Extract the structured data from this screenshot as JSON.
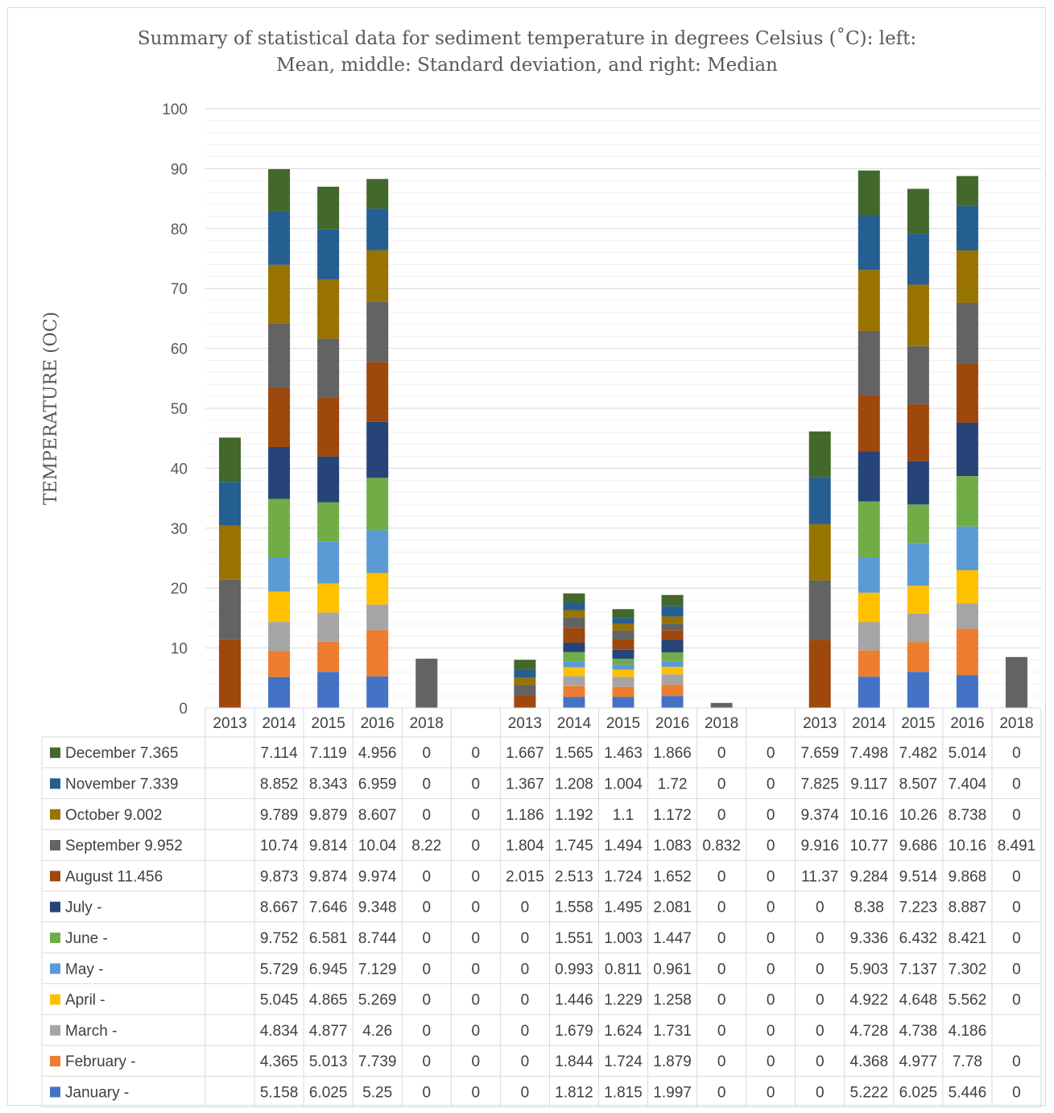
{
  "title": {
    "line1": "Summary of statistical data for sediment temperature in degrees Celsius (˚C): left:",
    "line2": "Mean, middle: Standard deviation, and right: Median"
  },
  "chart_data": {
    "type": "bar",
    "stacked": true,
    "title": "Summary of statistical data for sediment temperature in degrees Celsius (˚C): left: Mean, middle: Standard deviation, and right: Median",
    "ylabel": "TEMPERATURE  (OC)",
    "ylim": [
      0,
      100
    ],
    "yticks": [
      0,
      10,
      20,
      30,
      40,
      50,
      60,
      70,
      80,
      90,
      100
    ],
    "grid": true,
    "legend": "data-table-left",
    "categories": [
      "2013",
      "2014",
      "2015",
      "2016",
      "2018",
      "",
      "2013",
      "2014",
      "2015",
      "2016",
      "2018",
      "",
      "2013",
      "2014",
      "2015",
      "2016",
      "2018"
    ],
    "series": [
      {
        "name": "January",
        "legend_text": "January -",
        "color": "#4472c4",
        "values": [
          0,
          5.158,
          6.025,
          5.25,
          0,
          0,
          0,
          1.812,
          1.815,
          1.997,
          0,
          0,
          0,
          5.222,
          6.025,
          5.446,
          0
        ],
        "labels": [
          "-",
          "5.158",
          "6.025",
          "5.25",
          "0",
          "0",
          "0",
          "1.812",
          "1.815",
          "1.997",
          "0",
          "0",
          "0",
          "5.222",
          "6.025",
          "5.446",
          "0"
        ]
      },
      {
        "name": "February",
        "legend_text": "February -",
        "color": "#ed7d31",
        "values": [
          0,
          4.365,
          5.013,
          7.739,
          0,
          0,
          0,
          1.844,
          1.724,
          1.879,
          0,
          0,
          0,
          4.368,
          4.977,
          7.78,
          0
        ],
        "labels": [
          "-",
          "4.365",
          "5.013",
          "7.739",
          "0",
          "0",
          "0",
          "1.844",
          "1.724",
          "1.879",
          "0",
          "0",
          "0",
          "4.368",
          "4.977",
          "7.78",
          "0"
        ]
      },
      {
        "name": "March",
        "legend_text": "March -",
        "color": "#a5a5a5",
        "values": [
          0,
          4.834,
          4.877,
          4.26,
          0,
          0,
          0,
          1.679,
          1.624,
          1.731,
          0,
          0,
          0,
          4.728,
          4.738,
          4.186,
          0
        ],
        "labels": [
          "-",
          "4.834",
          "4.877",
          "4.26",
          "0",
          "0",
          "0",
          "1.679",
          "1.624",
          "1.731",
          "0",
          "0",
          "0",
          "4.728",
          "4.738",
          "4.186",
          ""
        ]
      },
      {
        "name": "April",
        "legend_text": "April -",
        "color": "#ffc000",
        "values": [
          0,
          5.045,
          4.865,
          5.269,
          0,
          0,
          0,
          1.446,
          1.229,
          1.258,
          0,
          0,
          0,
          4.922,
          4.648,
          5.562,
          0
        ],
        "labels": [
          "-",
          "5.045",
          "4.865",
          "5.269",
          "0",
          "0",
          "0",
          "1.446",
          "1.229",
          "1.258",
          "0",
          "0",
          "0",
          "4.922",
          "4.648",
          "5.562",
          "0"
        ]
      },
      {
        "name": "May",
        "legend_text": "May -",
        "color": "#5b9bd5",
        "values": [
          0,
          5.729,
          6.945,
          7.129,
          0,
          0,
          0,
          0.993,
          0.811,
          0.961,
          0,
          0,
          0,
          5.903,
          7.137,
          7.302,
          0
        ],
        "labels": [
          "-",
          "5.729",
          "6.945",
          "7.129",
          "0",
          "0",
          "0",
          "0.993",
          "0.811",
          "0.961",
          "0",
          "0",
          "0",
          "5.903",
          "7.137",
          "7.302",
          "0"
        ]
      },
      {
        "name": "June",
        "legend_text": "June -",
        "color": "#70ad47",
        "values": [
          0,
          9.752,
          6.581,
          8.744,
          0,
          0,
          0,
          1.551,
          1.003,
          1.447,
          0,
          0,
          0,
          9.336,
          6.432,
          8.421,
          0
        ],
        "labels": [
          "-",
          "9.752",
          "6.581",
          "8.744",
          "0",
          "0",
          "0",
          "1.551",
          "1.003",
          "1.447",
          "0",
          "0",
          "0",
          "9.336",
          "6.432",
          "8.421",
          "0"
        ]
      },
      {
        "name": "July",
        "legend_text": "July -",
        "color": "#264478",
        "values": [
          0,
          8.667,
          7.646,
          9.348,
          0,
          0,
          0,
          1.558,
          1.495,
          2.081,
          0,
          0,
          0,
          8.38,
          7.223,
          8.887,
          0
        ],
        "labels": [
          "-",
          "8.667",
          "7.646",
          "9.348",
          "0",
          "0",
          "0",
          "1.558",
          "1.495",
          "2.081",
          "0",
          "0",
          "0",
          "8.38",
          "7.223",
          "8.887",
          "0"
        ]
      },
      {
        "name": "August",
        "legend_text": "August 11.456",
        "color": "#9e480e",
        "values": [
          11.456,
          9.873,
          9.874,
          9.974,
          0,
          0,
          2.015,
          2.513,
          1.724,
          1.652,
          0,
          0,
          11.37,
          9.284,
          9.514,
          9.868,
          0
        ],
        "labels": [
          "11.456",
          "9.873",
          "9.874",
          "9.974",
          "0",
          "0",
          "2.015",
          "2.513",
          "1.724",
          "1.652",
          "0",
          "0",
          "11.37",
          "9.284",
          "9.514",
          "9.868",
          "0"
        ]
      },
      {
        "name": "September",
        "legend_text": "September 9.952",
        "color": "#636363",
        "values": [
          9.952,
          10.74,
          9.814,
          10.04,
          8.22,
          0,
          1.804,
          1.745,
          1.494,
          1.083,
          0.832,
          0,
          9.916,
          10.77,
          9.686,
          10.16,
          8.491
        ],
        "labels": [
          "9.952",
          "10.74",
          "9.814",
          "10.04",
          "8.22",
          "0",
          "1.804",
          "1.745",
          "1.494",
          "1.083",
          "0.832",
          "0",
          "9.916",
          "10.77",
          "9.686",
          "10.16",
          "8.491"
        ]
      },
      {
        "name": "October",
        "legend_text": "October 9.002",
        "color": "#997300",
        "values": [
          9.002,
          9.789,
          9.879,
          8.607,
          0,
          0,
          1.186,
          1.192,
          1.1,
          1.172,
          0,
          0,
          9.374,
          10.16,
          10.26,
          8.738,
          0
        ],
        "labels": [
          "9.002",
          "9.789",
          "9.879",
          "8.607",
          "0",
          "0",
          "1.186",
          "1.192",
          "1.1",
          "1.172",
          "0",
          "0",
          "9.374",
          "10.16",
          "10.26",
          "8.738",
          "0"
        ]
      },
      {
        "name": "November",
        "legend_text": "November 7.339",
        "color": "#255e91",
        "values": [
          7.339,
          8.852,
          8.343,
          6.959,
          0,
          0,
          1.367,
          1.208,
          1.004,
          1.72,
          0,
          0,
          7.825,
          9.117,
          8.507,
          7.404,
          0
        ],
        "labels": [
          "7.339",
          "8.852",
          "8.343",
          "6.959",
          "0",
          "0",
          "1.367",
          "1.208",
          "1.004",
          "1.72",
          "0",
          "0",
          "7.825",
          "9.117",
          "8.507",
          "7.404",
          "0"
        ]
      },
      {
        "name": "December",
        "legend_text": "December 7.365",
        "color": "#43682b",
        "values": [
          7.365,
          7.114,
          7.119,
          4.956,
          0,
          0,
          1.667,
          1.565,
          1.463,
          1.866,
          0,
          0,
          7.659,
          7.498,
          7.482,
          5.014,
          0
        ],
        "labels": [
          "7.365",
          "7.114",
          "7.119",
          "4.956",
          "0",
          "0",
          "1.667",
          "1.565",
          "1.463",
          "1.866",
          "0",
          "0",
          "7.659",
          "7.498",
          "7.482",
          "5.014",
          "0"
        ]
      }
    ]
  }
}
